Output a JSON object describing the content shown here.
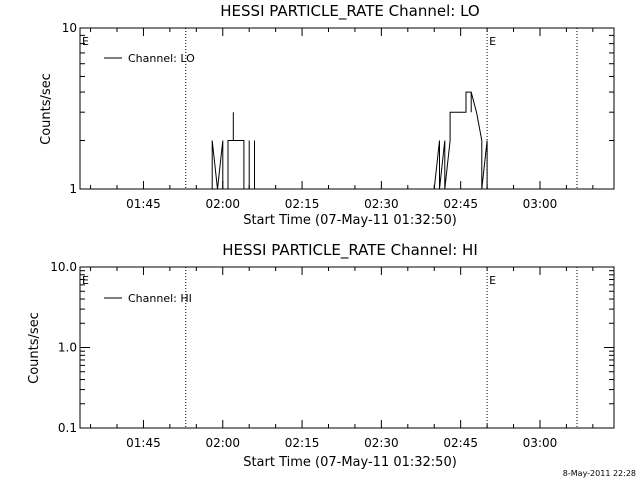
{
  "chart_data": [
    {
      "type": "line",
      "title": "HESSI PARTICLE_RATE Channel: LO",
      "xlabel": "Start Time (07-May-11 01:32:50)",
      "ylabel": "Counts/sec",
      "yscale": "log",
      "ylim": [
        1,
        10
      ],
      "y_ticks": [
        {
          "value": 1,
          "label": "1"
        },
        {
          "value": 10,
          "label": "10"
        }
      ],
      "xlim": [
        "01:33",
        "03:14"
      ],
      "x_ticks": [
        "01:45",
        "02:00",
        "02:15",
        "02:30",
        "02:45",
        "03:00"
      ],
      "markers": [
        {
          "time": "01:53",
          "label": ""
        },
        {
          "time": "02:50",
          "label": "E"
        },
        {
          "time": "03:07",
          "label": ""
        }
      ],
      "left_marker_label": "E",
      "legend": "top-left",
      "series": [
        {
          "name": "Channel: LO",
          "points": [
            [
              "01:58",
              1
            ],
            [
              "01:58",
              2
            ],
            [
              "01:59",
              1
            ],
            [
              "01:59",
              1
            ],
            [
              "02:00",
              2
            ],
            [
              "02:00",
              1
            ],
            [
              "02:01",
              1
            ],
            [
              "02:01",
              2
            ],
            [
              "02:01",
              1
            ],
            [
              "02:01",
              2
            ],
            [
              "02:02",
              2
            ],
            [
              "02:02",
              3
            ],
            [
              "02:02",
              2
            ],
            [
              "02:03",
              2
            ],
            [
              "02:04",
              2
            ],
            [
              "02:04",
              1
            ],
            [
              "02:05",
              1
            ],
            [
              "02:05",
              2
            ],
            [
              "02:05",
              1
            ],
            [
              "02:06",
              1
            ],
            [
              "02:06",
              2
            ],
            [
              "02:06",
              1
            ],
            [
              "02:40",
              1
            ],
            [
              "02:41",
              2
            ],
            [
              "02:41",
              1
            ],
            [
              "02:42",
              2
            ],
            [
              "02:42",
              1
            ],
            [
              "02:43",
              2
            ],
            [
              "02:43",
              3
            ],
            [
              "02:44",
              3
            ],
            [
              "02:45",
              3
            ],
            [
              "02:46",
              3
            ],
            [
              "02:46",
              4
            ],
            [
              "02:47",
              4
            ],
            [
              "02:47",
              3
            ],
            [
              "02:47",
              4
            ],
            [
              "02:48",
              3
            ],
            [
              "02:49",
              2
            ],
            [
              "02:49",
              1
            ],
            [
              "02:50",
              2
            ],
            [
              "02:50",
              1
            ]
          ]
        }
      ]
    },
    {
      "type": "line",
      "title": "HESSI PARTICLE_RATE Channel: HI",
      "xlabel": "Start Time (07-May-11 01:32:50)",
      "ylabel": "Counts/sec",
      "yscale": "log",
      "ylim": [
        0.1,
        10
      ],
      "y_ticks": [
        {
          "value": 0.1,
          "label": "0.1"
        },
        {
          "value": 1,
          "label": "1.0"
        },
        {
          "value": 10,
          "label": "10.0"
        }
      ],
      "xlim": [
        "01:33",
        "03:14"
      ],
      "x_ticks": [
        "01:45",
        "02:00",
        "02:15",
        "02:30",
        "02:45",
        "03:00"
      ],
      "markers": [
        {
          "time": "01:53",
          "label": ""
        },
        {
          "time": "02:50",
          "label": "E"
        },
        {
          "time": "03:07",
          "label": ""
        }
      ],
      "left_marker_label": "E",
      "legend": "top-left",
      "series": [
        {
          "name": "Channel: HI",
          "points": []
        }
      ]
    }
  ],
  "footer": {
    "timestamp": "8-May-2011 22:28"
  }
}
